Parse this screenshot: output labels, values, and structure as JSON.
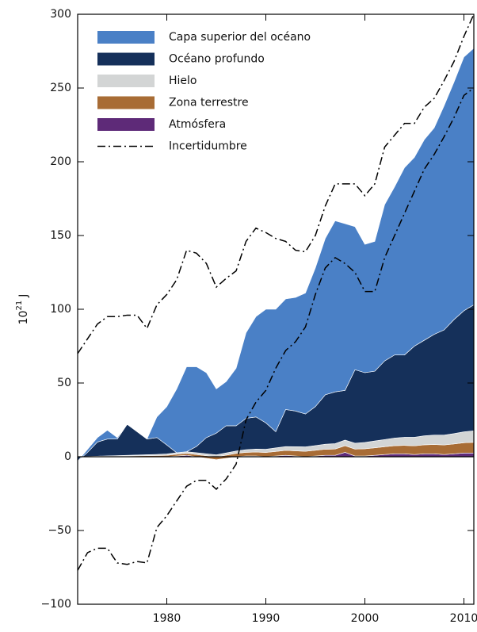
{
  "chart_data": {
    "type": "stacked_area",
    "y_label": {
      "base": "10",
      "exponent": "21",
      "unit": "J"
    },
    "x": [
      1971,
      1972,
      1973,
      1974,
      1975,
      1976,
      1977,
      1978,
      1979,
      1980,
      1981,
      1982,
      1983,
      1984,
      1985,
      1986,
      1987,
      1988,
      1989,
      1990,
      1991,
      1992,
      1993,
      1994,
      1995,
      1996,
      1997,
      1998,
      1999,
      2000,
      2001,
      2002,
      2003,
      2004,
      2005,
      2006,
      2007,
      2008,
      2009,
      2010,
      2011
    ],
    "xlim": [
      1971,
      2011
    ],
    "xticks": [
      1980,
      1990,
      2000,
      2010
    ],
    "ylim": [
      -100,
      300
    ],
    "yticks": [
      {
        "value": -100,
        "label": "−100"
      },
      {
        "value": -50,
        "label": "−50"
      },
      0,
      50,
      100,
      150,
      200,
      250,
      300
    ],
    "series": [
      {
        "name": "Capa superior del océano",
        "color": "#4a80c6",
        "values": [
          0,
          2,
          3,
          6,
          1,
          0,
          0,
          0,
          14,
          26,
          43.3,
          57.6,
          54,
          44,
          30,
          30,
          39,
          58,
          68,
          77,
          83,
          75,
          77,
          82,
          94,
          106,
          116,
          113,
          97,
          87,
          88,
          106,
          114,
          127,
          128,
          136,
          140,
          152,
          161,
          172,
          174
        ]
      },
      {
        "name": "Océano profundo",
        "color": "#15305a",
        "values": [
          -3,
          2.8,
          9.6,
          11.4,
          11.2,
          21,
          15.8,
          10.6,
          11.4,
          6.1,
          0,
          0,
          4.3,
          11,
          14.7,
          18.4,
          17.1,
          21.2,
          21.8,
          17.9,
          11,
          25.1,
          24.2,
          22.3,
          26.4,
          33.5,
          35.1,
          33.7,
          49.8,
          47.3,
          47.3,
          53.3,
          56.3,
          55.8,
          61.8,
          64.8,
          68.3,
          71.3,
          77.3,
          82.1,
          85.4
        ]
      },
      {
        "name": "Hielo",
        "color": "#d3d5d5",
        "values": [
          0,
          0.1,
          0.2,
          0.3,
          0.4,
          0.5,
          0.6,
          0.7,
          0.8,
          0.9,
          1,
          1.1,
          1.2,
          1.3,
          1.4,
          1.5,
          1.6,
          1.8,
          2,
          2.2,
          2.4,
          2.6,
          2.8,
          3,
          3.2,
          3.4,
          3.6,
          3.8,
          4,
          4.3,
          4.6,
          4.9,
          5.2,
          5.5,
          5.8,
          6.1,
          6.4,
          6.7,
          7,
          7.4,
          7.8
        ]
      },
      {
        "name": "Zona terrestre",
        "color": "#a86c35",
        "values": [
          0,
          0.1,
          0.2,
          0.3,
          0.4,
          0.5,
          0.6,
          0.7,
          0.8,
          1,
          1.2,
          1.3,
          1.5,
          1.7,
          1.9,
          2.1,
          2.3,
          2.5,
          2.7,
          2.9,
          3.1,
          3.3,
          3.5,
          3.7,
          3.9,
          4.1,
          4.3,
          4.5,
          4.7,
          4.9,
          5.1,
          5.3,
          5.5,
          5.7,
          5.9,
          6.1,
          6.3,
          6.5,
          6.7,
          7,
          7.3
        ]
      },
      {
        "name": "Atmósfera",
        "color": "#5e2a78",
        "values": [
          0,
          0,
          0,
          0,
          0,
          0,
          0,
          0,
          0,
          0,
          0.5,
          1,
          0,
          -1,
          -2,
          -1,
          0,
          0.5,
          0.5,
          0,
          0.5,
          1,
          0.5,
          0,
          0.5,
          1,
          1,
          3,
          0.5,
          0.5,
          1,
          1.5,
          2,
          2,
          1.5,
          2,
          2,
          1.5,
          2,
          2.5,
          2.5
        ]
      }
    ],
    "uncertainty": {
      "name": "Incertidumbre",
      "color": "#000000",
      "upper": [
        70,
        80,
        90,
        95,
        95,
        96,
        96,
        87,
        103,
        110,
        120,
        140,
        138,
        131,
        115,
        121,
        126,
        146,
        155,
        152,
        148,
        146,
        140,
        139,
        150,
        170,
        185,
        185,
        185,
        177,
        185,
        210,
        218,
        226,
        226,
        237,
        243,
        255,
        268,
        285,
        300
      ],
      "lower": [
        -77,
        -65,
        -62,
        -62,
        -72,
        -73,
        -71,
        -72,
        -48,
        -40,
        -30,
        -20,
        -16,
        -16,
        -22,
        -15,
        -5,
        25,
        37,
        45,
        60,
        72,
        78,
        88,
        110,
        128,
        135,
        131,
        125,
        112,
        112,
        135,
        150,
        165,
        180,
        195,
        205,
        217,
        230,
        245,
        250
      ]
    }
  }
}
